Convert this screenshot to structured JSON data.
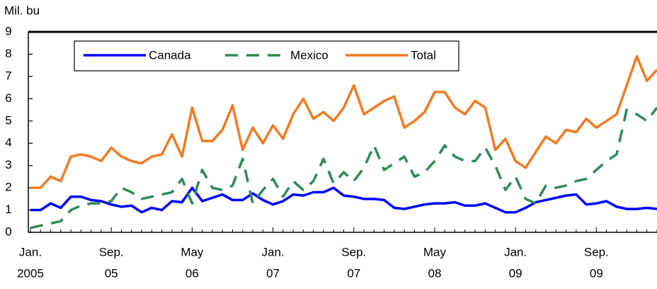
{
  "chart_data": {
    "type": "line",
    "y_label": "Mil. bu",
    "categories": [
      {
        "month": "Jan.",
        "year": "2005"
      },
      null,
      null,
      null,
      null,
      null,
      null,
      null,
      {
        "month": "Sep.",
        "year": "05"
      },
      null,
      null,
      null,
      null,
      null,
      null,
      null,
      {
        "month": "May",
        "year": "06"
      },
      null,
      null,
      null,
      null,
      null,
      null,
      null,
      {
        "month": "Jan.",
        "year": "07"
      },
      null,
      null,
      null,
      null,
      null,
      null,
      null,
      {
        "month": "Sep.",
        "year": "07"
      },
      null,
      null,
      null,
      null,
      null,
      null,
      null,
      {
        "month": "May",
        "year": "08"
      },
      null,
      null,
      null,
      null,
      null,
      null,
      null,
      {
        "month": "Jan.",
        "year": "09"
      },
      null,
      null,
      null,
      null,
      null,
      null,
      null,
      {
        "month": "Sep.",
        "year": "09"
      },
      null,
      null,
      null,
      null,
      null,
      null
    ],
    "series": [
      {
        "name": "Canada",
        "color": "#0000ff",
        "dash": false,
        "values": [
          1.0,
          1.0,
          1.3,
          1.1,
          1.6,
          1.6,
          1.45,
          1.4,
          1.25,
          1.15,
          1.2,
          0.9,
          1.1,
          1.0,
          1.4,
          1.35,
          2.0,
          1.4,
          1.55,
          1.7,
          1.45,
          1.45,
          1.75,
          1.45,
          1.25,
          1.4,
          1.7,
          1.65,
          1.8,
          1.8,
          2.0,
          1.65,
          1.6,
          1.5,
          1.5,
          1.45,
          1.1,
          1.05,
          1.15,
          1.25,
          1.3,
          1.3,
          1.35,
          1.2,
          1.2,
          1.3,
          1.1,
          0.9,
          0.9,
          1.1,
          1.35,
          1.45,
          1.55,
          1.65,
          1.7,
          1.25,
          1.3,
          1.4,
          1.15,
          1.05,
          1.05,
          1.1,
          1.05
        ]
      },
      {
        "name": "Mexico",
        "color": "#2e8b57",
        "dash": true,
        "values": [
          0.2,
          0.3,
          0.4,
          0.5,
          1.0,
          1.2,
          1.3,
          1.3,
          1.4,
          2.0,
          1.8,
          1.5,
          1.6,
          1.7,
          1.8,
          2.4,
          1.3,
          2.8,
          2.0,
          1.9,
          2.1,
          3.3,
          1.3,
          1.9,
          2.4,
          1.6,
          2.3,
          1.9,
          2.3,
          3.3,
          2.2,
          2.7,
          2.3,
          2.9,
          3.9,
          2.8,
          3.1,
          3.4,
          2.5,
          2.7,
          3.2,
          3.9,
          3.4,
          3.2,
          3.2,
          3.8,
          3.0,
          1.9,
          2.5,
          1.5,
          1.3,
          2.1,
          2.0,
          2.1,
          2.3,
          2.4,
          2.8,
          3.2,
          3.5,
          5.5,
          5.3,
          5.0,
          5.6
        ]
      },
      {
        "name": "Total",
        "color": "#f47a20",
        "dash": false,
        "values": [
          2.0,
          2.0,
          2.5,
          2.3,
          3.4,
          3.5,
          3.4,
          3.2,
          3.8,
          3.4,
          3.2,
          3.1,
          3.4,
          3.5,
          4.4,
          3.4,
          5.6,
          4.1,
          4.1,
          4.6,
          5.7,
          3.7,
          4.7,
          4.0,
          4.8,
          4.2,
          5.3,
          6.0,
          5.1,
          5.4,
          5.0,
          5.6,
          6.6,
          5.3,
          5.6,
          5.9,
          6.1,
          4.7,
          5.0,
          5.4,
          6.3,
          6.3,
          5.6,
          5.3,
          5.9,
          5.6,
          3.7,
          4.2,
          3.2,
          2.9,
          3.6,
          4.3,
          4.0,
          4.6,
          4.5,
          5.1,
          4.7,
          5.0,
          5.3,
          6.6,
          7.9,
          6.8,
          7.3
        ]
      }
    ],
    "ylim": [
      0,
      9
    ],
    "yticks": [
      0,
      1,
      2,
      3,
      4,
      5,
      6,
      7,
      8,
      9
    ]
  }
}
